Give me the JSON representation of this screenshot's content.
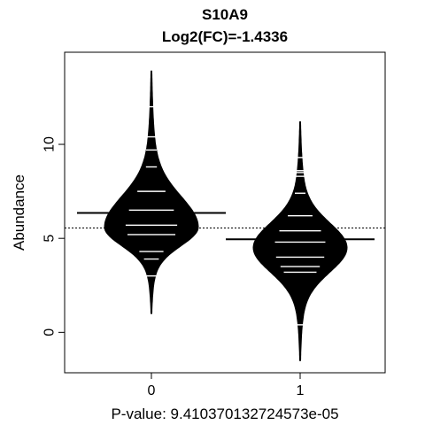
{
  "chart_data": {
    "type": "beanplot",
    "title": "S10A9",
    "subtitle": "Log2(FC)=-1.4336",
    "xlabel": "P-value: 9.410370132724573e-05",
    "ylabel": "Abundance",
    "categories": [
      "0",
      "1"
    ],
    "y_ticks": [
      0,
      5,
      10
    ],
    "ylim": [
      -2.15,
      14.9
    ],
    "overall_mean": 5.55,
    "beans": [
      {
        "category": "0",
        "group_mean": 6.35,
        "y_min": 1.0,
        "y_max": 13.9,
        "mode": 5.6,
        "highlight_lines": [
          12.0,
          10.4,
          9.7,
          8.8,
          7.5,
          6.5,
          5.7,
          5.2,
          4.3,
          3.9,
          3.0
        ]
      },
      {
        "category": "1",
        "group_mean": 4.95,
        "y_min": -1.5,
        "y_max": 11.2,
        "mode": 4.5,
        "highlight_lines": [
          9.3,
          8.6,
          8.5,
          8.3,
          7.4,
          6.2,
          5.4,
          4.8,
          4.0,
          3.5,
          3.2,
          0.4
        ]
      }
    ]
  }
}
